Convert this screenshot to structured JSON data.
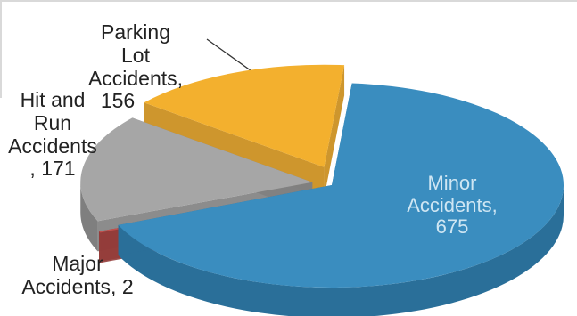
{
  "chart_data": {
    "type": "pie",
    "title": "",
    "slices": [
      {
        "label": "Minor Accidents",
        "value": 675,
        "display": [
          "Minor",
          "Accidents,",
          "675"
        ],
        "color": "#3a8dbf",
        "side_color": "#2a6f99"
      },
      {
        "label": "Major Accidents",
        "value": 2,
        "display": [
          "Major",
          "Accidents, 2"
        ],
        "color": "#c0504d",
        "side_color": "#943c3a"
      },
      {
        "label": "Hit and Run Accidents",
        "value": 171,
        "display": [
          "Hit and",
          "Run",
          "Accidents",
          ", 171"
        ],
        "color": "#a6a6a6",
        "side_color": "#7f7f7f"
      },
      {
        "label": "Parking Lot Accidents",
        "value": 156,
        "display": [
          "Parking",
          "Lot",
          "Accidents,",
          "156"
        ],
        "color": "#f3b02e",
        "side_color": "#c98b16"
      }
    ],
    "exploded": true,
    "three_d": true,
    "legend": "none"
  }
}
